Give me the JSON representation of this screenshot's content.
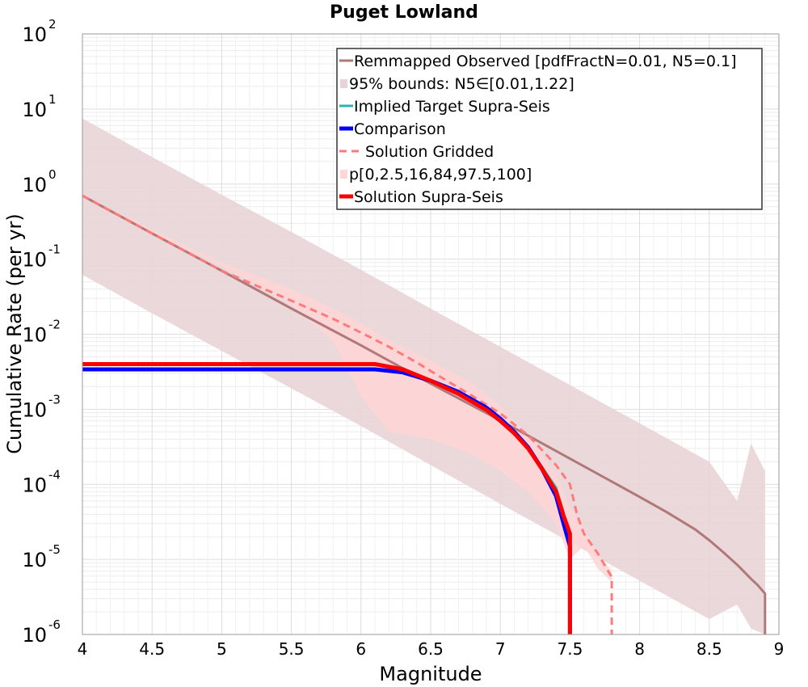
{
  "chart_data": {
    "type": "line",
    "title": "Puget Lowland",
    "xlabel": "Magnitude",
    "ylabel": "Cumulative Rate (per yr)",
    "xlim": [
      4,
      9
    ],
    "ylim": [
      1e-06,
      100
    ],
    "yscale": "log",
    "grid": true,
    "legend_position": "top-right",
    "x_ticks": [
      "4",
      "4.5",
      "5",
      "5.5",
      "6",
      "6.5",
      "7",
      "7.5",
      "8",
      "8.5",
      "9"
    ],
    "y_ticks": [
      {
        "base": "10",
        "exp": "-6"
      },
      {
        "base": "10",
        "exp": "-5"
      },
      {
        "base": "10",
        "exp": "-4"
      },
      {
        "base": "10",
        "exp": "-3"
      },
      {
        "base": "10",
        "exp": "-2"
      },
      {
        "base": "10",
        "exp": "-1"
      },
      {
        "base": "10",
        "exp": "0"
      },
      {
        "base": "10",
        "exp": "1"
      },
      {
        "base": "10",
        "exp": "2"
      }
    ],
    "colors": {
      "remapped_observed": "#b07878",
      "bounds_fill": "#e8d4d6",
      "implied_target": "#2ab3b3",
      "comparison": "#0000ff",
      "solution_gridded": "#ff7a7a",
      "percentile_fill": "#ffd6d6",
      "solution_supra": "#ff0000"
    },
    "legend": [
      {
        "key": "remapped_observed",
        "label": "Remmapped Observed [pdfFractN=0.01, N5=0.1]",
        "style": "line"
      },
      {
        "key": "bounds",
        "label": "95% bounds: N5∈[0.01,1.22]",
        "style": "patch"
      },
      {
        "key": "implied_target",
        "label": "Implied Target Supra-Seis",
        "style": "line"
      },
      {
        "key": "comparison",
        "label": "Comparison",
        "style": "thick"
      },
      {
        "key": "solution_gridded",
        "label": "Solution Gridded",
        "style": "dashed"
      },
      {
        "key": "percentiles",
        "label": "p[0,2.5,16,84,97.5,100]",
        "style": "patch"
      },
      {
        "key": "solution_supra",
        "label": "Solution Supra-Seis",
        "style": "thick"
      }
    ],
    "bounds_band": {
      "x": [
        4.0,
        4.5,
        5.0,
        5.5,
        6.0,
        6.5,
        7.0,
        7.5,
        8.0,
        8.5,
        8.7,
        8.8,
        8.9
      ],
      "upper": [
        7.5,
        2.3,
        0.72,
        0.23,
        0.072,
        0.022,
        0.0068,
        0.0021,
        0.00065,
        0.0002,
        6e-05,
        0.00035,
        0.00015
      ],
      "lower": [
        0.062,
        0.019,
        0.006,
        0.0019,
        0.0006,
        0.00018,
        5.5e-05,
        1.7e-05,
        5.2e-06,
        1.6e-06,
        2.5e-06,
        1.2e-06,
        1e-06
      ]
    },
    "percentile_band": {
      "x": [
        4.0,
        4.5,
        5.0,
        5.5,
        5.8,
        6.0,
        6.2,
        6.5,
        6.8,
        7.0,
        7.2,
        7.4,
        7.5,
        7.6,
        7.7,
        7.8
      ],
      "upper": [
        0.7,
        0.25,
        0.09,
        0.04,
        0.022,
        0.014,
        0.0085,
        0.0045,
        0.0022,
        0.0011,
        0.00045,
        0.00014,
        5e-05,
        2.5e-05,
        1.2e-05,
        7e-06
      ],
      "lower": [
        0.7,
        0.23,
        0.08,
        0.025,
        0.008,
        0.0015,
        0.0005,
        0.0004,
        0.00025,
        0.00015,
        8e-05,
        3e-05,
        1e-05,
        1.5e-05,
        7.5e-06,
        5e-06
      ]
    },
    "series": [
      {
        "name": "Remmapped Observed [pdfFractN=0.01, N5=0.1]",
        "key": "remapped_observed",
        "x": [
          4.0,
          4.5,
          5.0,
          5.5,
          6.0,
          6.5,
          7.0,
          7.5,
          8.0,
          8.2,
          8.4,
          8.5,
          8.6,
          8.7,
          8.8,
          8.85,
          8.9,
          8.9
        ],
        "y": [
          0.7,
          0.22,
          0.07,
          0.022,
          0.0071,
          0.0022,
          0.00071,
          0.00022,
          6.8e-05,
          4.2e-05,
          2.5e-05,
          1.8e-05,
          1.25e-05,
          8.5e-06,
          5.5e-06,
          4.5e-06,
          3.5e-06,
          1e-06
        ]
      },
      {
        "name": "Implied Target Supra-Seis",
        "key": "implied_target",
        "x": [
          4.0,
          6.1,
          6.3,
          6.5,
          6.7,
          6.9,
          7.0,
          7.1,
          7.2,
          7.3,
          7.4,
          7.45,
          7.5,
          7.5
        ],
        "y": [
          0.0034,
          0.0034,
          0.0031,
          0.0024,
          0.0017,
          0.00105,
          0.00075,
          0.0005,
          0.00032,
          0.00017,
          9e-05,
          4.5e-05,
          1.8e-05,
          1e-06
        ]
      },
      {
        "name": "Comparison",
        "key": "comparison",
        "x": [
          4.0,
          6.1,
          6.3,
          6.5,
          6.7,
          6.9,
          7.0,
          7.1,
          7.2,
          7.3,
          7.4,
          7.45,
          7.5,
          7.5
        ],
        "y": [
          0.0034,
          0.0034,
          0.0031,
          0.0024,
          0.0017,
          0.00105,
          0.00075,
          0.0005,
          0.00031,
          0.00016,
          7e-05,
          3.2e-05,
          1.5e-05,
          1e-06
        ]
      },
      {
        "name": "Solution Gridded",
        "key": "solution_gridded",
        "x": [
          4.0,
          4.5,
          5.0,
          5.5,
          5.8,
          6.0,
          6.2,
          6.4,
          6.6,
          6.8,
          7.0,
          7.2,
          7.4,
          7.5,
          7.55,
          7.6,
          7.7,
          7.8,
          7.8
        ],
        "y": [
          0.7,
          0.22,
          0.07,
          0.028,
          0.016,
          0.0105,
          0.0068,
          0.0042,
          0.0025,
          0.0015,
          0.00088,
          0.00045,
          0.00018,
          0.0001,
          4e-05,
          2.2e-05,
          1.2e-05,
          5.8e-06,
          1e-06
        ]
      },
      {
        "name": "Solution Supra-Seis",
        "key": "solution_supra",
        "x": [
          4.0,
          6.1,
          6.3,
          6.5,
          6.7,
          6.9,
          7.0,
          7.1,
          7.2,
          7.3,
          7.4,
          7.45,
          7.5,
          7.5
        ],
        "y": [
          0.004,
          0.004,
          0.0034,
          0.0024,
          0.0016,
          0.00098,
          0.0007,
          0.00048,
          0.0003,
          0.00016,
          8e-05,
          4e-05,
          2.2e-05,
          1e-06
        ]
      }
    ]
  }
}
